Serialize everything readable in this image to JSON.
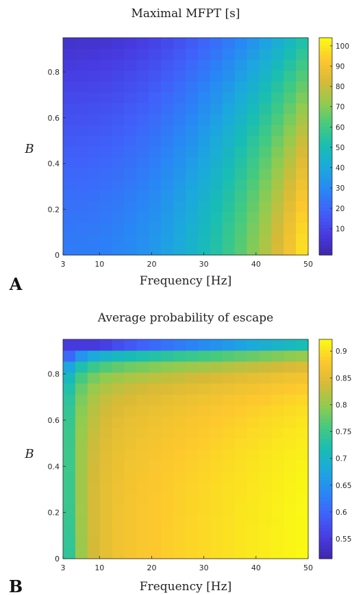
{
  "chart_data": [
    {
      "panel_label": "A",
      "type": "heatmap",
      "title": "Maximal MFPT [s]",
      "xlabel": "Frequency [Hz]",
      "ylabel": "B",
      "x_ticks": [
        3,
        10,
        20,
        30,
        40,
        50
      ],
      "y_ticks": [
        0,
        0.2,
        0.4,
        0.6,
        0.8
      ],
      "xlim": [
        3,
        50
      ],
      "ylim": [
        0,
        0.95
      ],
      "grid": "20 x 20 cells, frequency 3 to 50 Hz, B 0 to 0.95",
      "colormap": "parula",
      "clim": [
        -3,
        104
      ],
      "colorbar_ticks": [
        10,
        20,
        30,
        40,
        50,
        60,
        70,
        80,
        90,
        100
      ],
      "model": "value decreases toward high B and rises steeply toward high frequency; lowest (~4) at low frequency / high B, highest (~100) at 50 Hz / B near 0.2-0.4",
      "corner_values": {
        "low_f_low_B": 26,
        "high_f_low_B": 98,
        "low_f_high_B": 4,
        "high_f_high_B": 46
      }
    },
    {
      "panel_label": "B",
      "type": "heatmap",
      "title": "Average probability of escape",
      "xlabel": "Frequency [Hz]",
      "ylabel": "B",
      "x_ticks": [
        3,
        10,
        20,
        30,
        40,
        50
      ],
      "y_ticks": [
        0,
        0.2,
        0.4,
        0.6,
        0.8
      ],
      "xlim": [
        3,
        50
      ],
      "ylim": [
        0,
        0.95
      ],
      "grid": "20 x 20 cells, frequency 3 to 50 Hz, B 0 to 0.95",
      "colormap": "parula",
      "clim": [
        0.513,
        0.922
      ],
      "colorbar_ticks": [
        0.55,
        0.6,
        0.65,
        0.7,
        0.75,
        0.8,
        0.85,
        0.9
      ],
      "corner_values": {
        "low_f_low_B": 0.8,
        "high_f_low_B": 0.92,
        "low_f_high_B": 0.6,
        "high_f_high_B": 0.7
      }
    }
  ]
}
